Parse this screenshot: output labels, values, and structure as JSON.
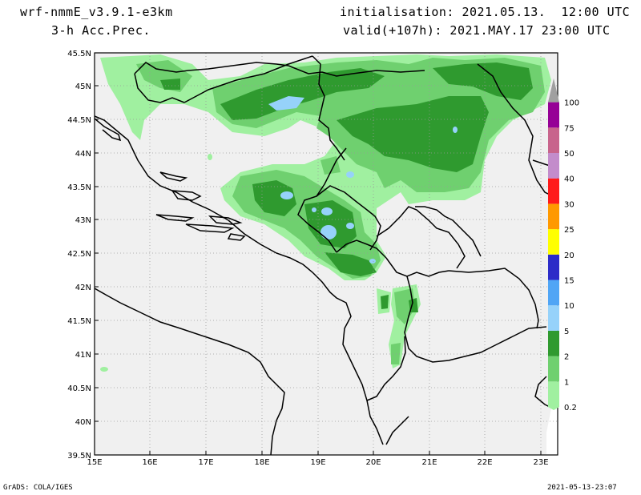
{
  "header": {
    "model": "wrf-nmmE_v3.9.1-e3km",
    "field": "3-h Acc.Prec.",
    "init": "initialisation: 2021.05.13.  12:00 UTC",
    "valid": "valid(+107h): 2021.MAY.17 23:00 UTC"
  },
  "footer": {
    "credit": "GrADS: COLA/IGES",
    "timestamp": "2021-05-13-23:07"
  },
  "map": {
    "background_color": "#f0f0f0",
    "lat_labels": [
      "45.5N",
      "45N",
      "44.5N",
      "44N",
      "43.5N",
      "43N",
      "42.5N",
      "42N",
      "41.5N",
      "41N",
      "40.5N",
      "40N",
      "39.5N"
    ],
    "lon_labels": [
      "15E",
      "16E",
      "17E",
      "18E",
      "19E",
      "20E",
      "21E",
      "22E",
      "23E"
    ],
    "gridlines": "dotted"
  },
  "legend": {
    "levels": [
      {
        "label": "0.2",
        "color": "#a0f0a0"
      },
      {
        "label": "1",
        "color": "#6fd06f"
      },
      {
        "label": "2",
        "color": "#2f9a2f"
      },
      {
        "label": "5",
        "color": "#96d2fa"
      },
      {
        "label": "10",
        "color": "#50a5f5"
      },
      {
        "label": "15",
        "color": "#2c2cc8"
      },
      {
        "label": "20",
        "color": "#ffff00"
      },
      {
        "label": "25",
        "color": "#ff9900"
      },
      {
        "label": "30",
        "color": "#ff1a1a"
      },
      {
        "label": "40",
        "color": "#c38ccb"
      },
      {
        "label": "50",
        "color": "#c8648c"
      },
      {
        "label": "75",
        "color": "#960096"
      },
      {
        "label": "100",
        "color": "#a0a0a0"
      }
    ]
  }
}
